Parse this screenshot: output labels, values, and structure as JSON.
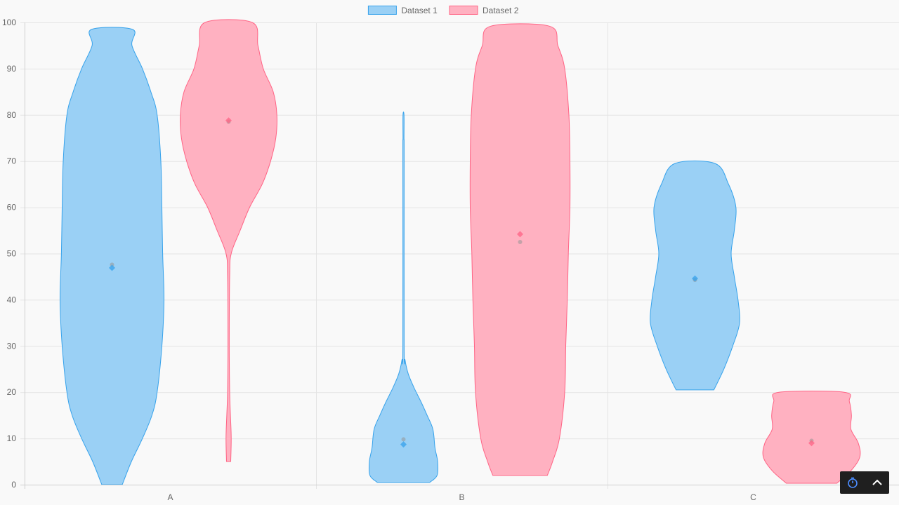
{
  "chart_data": {
    "type": "violin",
    "categories": [
      "A",
      "B",
      "C"
    ],
    "ylim": [
      0,
      100
    ],
    "yticks": [
      0,
      10,
      20,
      30,
      40,
      50,
      60,
      70,
      80,
      90,
      100
    ],
    "grid": true,
    "legend_position": "top",
    "series": [
      {
        "name": "Dataset 1",
        "fill": "#9ad0f5",
        "stroke": "#36a2eb",
        "violins": [
          {
            "category": "A",
            "min": 0,
            "max": 98.5,
            "mean": 46.9,
            "median": 47.6,
            "profile": [
              [
                0,
                0.195
              ],
              [
                5,
                0.37
              ],
              [
                10,
                0.58
              ],
              [
                15,
                0.76
              ],
              [
                20,
                0.86
              ],
              [
                30,
                0.95
              ],
              [
                40,
                0.99
              ],
              [
                50,
                0.965
              ],
              [
                60,
                0.95
              ],
              [
                70,
                0.93
              ],
              [
                80,
                0.86
              ],
              [
                85,
                0.74
              ],
              [
                90,
                0.58
              ],
              [
                95,
                0.38
              ],
              [
                98.5,
                0.39
              ]
            ]
          },
          {
            "category": "B",
            "min": 0.5,
            "max": 80,
            "mean": 8.7,
            "median": 9.8,
            "profile": [
              [
                0.5,
                0.5
              ],
              [
                2,
                0.64
              ],
              [
                5,
                0.65
              ],
              [
                8,
                0.6
              ],
              [
                12,
                0.56
              ],
              [
                15,
                0.45
              ],
              [
                18,
                0.33
              ],
              [
                21,
                0.2
              ],
              [
                24,
                0.09
              ],
              [
                27,
                0.03
              ],
              [
                30,
                0.012
              ],
              [
                70,
                0.012
              ],
              [
                75,
                0.01
              ],
              [
                80,
                0.01
              ]
            ]
          },
          {
            "category": "C",
            "min": 20.5,
            "max": 69.5,
            "mean": 44.6,
            "median": 44.3,
            "profile": [
              [
                20.5,
                0.36
              ],
              [
                25,
                0.55
              ],
              [
                30,
                0.72
              ],
              [
                35,
                0.85
              ],
              [
                40,
                0.82
              ],
              [
                45,
                0.75
              ],
              [
                50,
                0.69
              ],
              [
                55,
                0.75
              ],
              [
                60,
                0.78
              ],
              [
                65,
                0.64
              ],
              [
                69.5,
                0.38
              ]
            ]
          }
        ]
      },
      {
        "name": "Dataset 2",
        "fill": "#ffb1c1",
        "stroke": "#ff6384",
        "violins": [
          {
            "category": "A",
            "min": 5,
            "max": 100,
            "mean": 78.8,
            "median": 78.5,
            "profile": [
              [
                5,
                0.04
              ],
              [
                10,
                0.05
              ],
              [
                15,
                0.035
              ],
              [
                20,
                0.02
              ],
              [
                30,
                0.012
              ],
              [
                45,
                0.02
              ],
              [
                50,
                0.05
              ],
              [
                55,
                0.22
              ],
              [
                60,
                0.4
              ],
              [
                65,
                0.64
              ],
              [
                70,
                0.8
              ],
              [
                75,
                0.9
              ],
              [
                80,
                0.92
              ],
              [
                85,
                0.85
              ],
              [
                90,
                0.66
              ],
              [
                95,
                0.56
              ],
              [
                100,
                0.45
              ]
            ]
          },
          {
            "category": "B",
            "min": 2,
            "max": 99.2,
            "mean": 54.2,
            "median": 52.5,
            "profile": [
              [
                2,
                0.52
              ],
              [
                5,
                0.62
              ],
              [
                10,
                0.75
              ],
              [
                20,
                0.85
              ],
              [
                30,
                0.87
              ],
              [
                40,
                0.9
              ],
              [
                50,
                0.92
              ],
              [
                60,
                0.95
              ],
              [
                70,
                0.95
              ],
              [
                80,
                0.93
              ],
              [
                90,
                0.85
              ],
              [
                95,
                0.72
              ],
              [
                99.2,
                0.56
              ]
            ]
          },
          {
            "category": "C",
            "min": 0.3,
            "max": 20,
            "mean": 9.0,
            "median": 9.5,
            "profile": [
              [
                0.3,
                0.48
              ],
              [
                3,
                0.75
              ],
              [
                6,
                0.92
              ],
              [
                9,
                0.89
              ],
              [
                12,
                0.75
              ],
              [
                15,
                0.76
              ],
              [
                18,
                0.72
              ],
              [
                20,
                0.62
              ]
            ]
          }
        ]
      }
    ]
  },
  "toolbar": {
    "icons": [
      "stopwatch-icon",
      "chevron-up-icon"
    ],
    "accent": "#4c8dff"
  }
}
